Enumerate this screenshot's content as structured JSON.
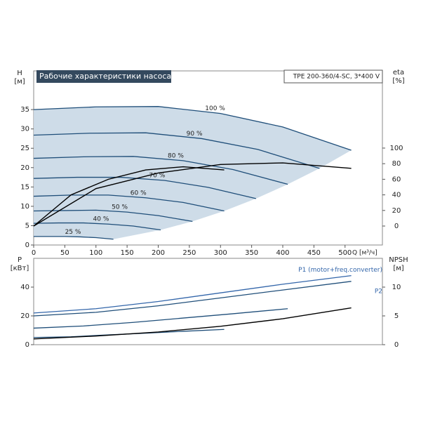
{
  "chart_data": [
    {
      "type": "line",
      "title": "Рабочие характеристики насоса",
      "subtitle": "TPE 200-360/4-SC, 3*400 V",
      "y_label": "H",
      "y_unit": "[м]",
      "y2_label": "eta",
      "y2_unit": "[%]",
      "x_label": "Q [м³/ч]",
      "xlim": [
        0,
        560
      ],
      "xticks": [
        0,
        50,
        100,
        150,
        200,
        250,
        300,
        350,
        400,
        450,
        500
      ],
      "ylim": [
        0,
        45
      ],
      "yticks": [
        0,
        5,
        10,
        15,
        20,
        25,
        30,
        35
      ],
      "y2lim": [
        -24.3,
        199
      ],
      "y2ticks": [
        0,
        20,
        40,
        60,
        80,
        100
      ],
      "range_fill": "#c9d8e6",
      "series": [
        {
          "name": "100 %",
          "color": "#1f4e79",
          "x": [
            0,
            100,
            200,
            300,
            400,
            510
          ],
          "values": [
            35,
            35.7,
            35.8,
            34,
            30.5,
            24.5
          ]
        },
        {
          "name": "90 %",
          "color": "#1f4e79",
          "x": [
            0,
            90,
            180,
            270,
            360,
            459
          ],
          "values": [
            28.4,
            28.9,
            29,
            27.5,
            24.7,
            19.8
          ]
        },
        {
          "name": "80 %",
          "color": "#1f4e79",
          "x": [
            0,
            80,
            160,
            240,
            320,
            408
          ],
          "values": [
            22.4,
            22.8,
            22.9,
            21.8,
            19.5,
            15.7
          ]
        },
        {
          "name": "70 %",
          "color": "#1f4e79",
          "x": [
            0,
            70,
            140,
            210,
            280,
            357
          ],
          "values": [
            17.2,
            17.5,
            17.5,
            16.7,
            14.9,
            12
          ]
        },
        {
          "name": "60 %",
          "color": "#1f4e79",
          "x": [
            0,
            60,
            120,
            180,
            240,
            306
          ],
          "values": [
            12.6,
            12.9,
            12.9,
            12.2,
            11,
            8.8
          ]
        },
        {
          "name": "50 %",
          "color": "#1f4e79",
          "x": [
            0,
            50,
            100,
            150,
            200,
            255
          ],
          "values": [
            8.8,
            8.9,
            9,
            8.5,
            7.6,
            6.1
          ]
        },
        {
          "name": "40 %",
          "color": "#1f4e79",
          "x": [
            0,
            40,
            80,
            120,
            160,
            204
          ],
          "values": [
            5.6,
            5.7,
            5.7,
            5.4,
            4.9,
            3.9
          ]
        },
        {
          "name": "25 %",
          "color": "#1f4e79",
          "x": [
            0,
            25,
            50,
            75,
            100,
            128
          ],
          "values": [
            2.2,
            2.2,
            2.2,
            2.1,
            1.9,
            1.5
          ]
        },
        {
          "color": "#000000",
          "axis": "y2",
          "x": [
            0,
            100,
            200,
            300,
            400,
            510
          ],
          "values": [
            0,
            48,
            68,
            79,
            81,
            74
          ]
        },
        {
          "color": "#000000",
          "axis": "y2",
          "x": [
            0,
            60,
            120,
            180,
            240,
            306
          ],
          "values": [
            0,
            40,
            60,
            72,
            76,
            72
          ]
        }
      ]
    },
    {
      "type": "line",
      "y_label": "P",
      "y_unit": "[кВт]",
      "y2_label": "NPSH",
      "y2_unit": "[м]",
      "xlim": [
        0,
        560
      ],
      "ylim": [
        0,
        60
      ],
      "yticks": [
        0,
        20,
        40
      ],
      "y2lim": [
        0,
        15
      ],
      "y2ticks": [
        0,
        5,
        10
      ],
      "series": [
        {
          "name": "P1 (motor+freq.converter)",
          "color": "#3366aa",
          "x": [
            0,
            100,
            200,
            300,
            400,
            510
          ],
          "values": [
            22,
            25,
            30,
            36,
            42,
            48
          ]
        },
        {
          "name": "P2",
          "color": "#1f4e79",
          "x": [
            0,
            100,
            200,
            300,
            400,
            510
          ],
          "values": [
            20,
            22.5,
            27,
            32.5,
            38,
            44
          ]
        },
        {
          "color": "#1f4e79",
          "x": [
            0,
            80,
            160,
            240,
            320,
            408
          ],
          "values": [
            11.5,
            13,
            15.5,
            18.5,
            21.5,
            25
          ]
        },
        {
          "color": "#1f4e79",
          "x": [
            0,
            60,
            120,
            180,
            240,
            306
          ],
          "values": [
            5,
            5.5,
            6.8,
            8,
            9.3,
            10.6
          ]
        },
        {
          "color": "#000000",
          "axis": "y2",
          "x": [
            0,
            100,
            200,
            300,
            400,
            510
          ],
          "values": [
            1,
            1.5,
            2.2,
            3.2,
            4.5,
            6.4
          ]
        }
      ]
    }
  ]
}
